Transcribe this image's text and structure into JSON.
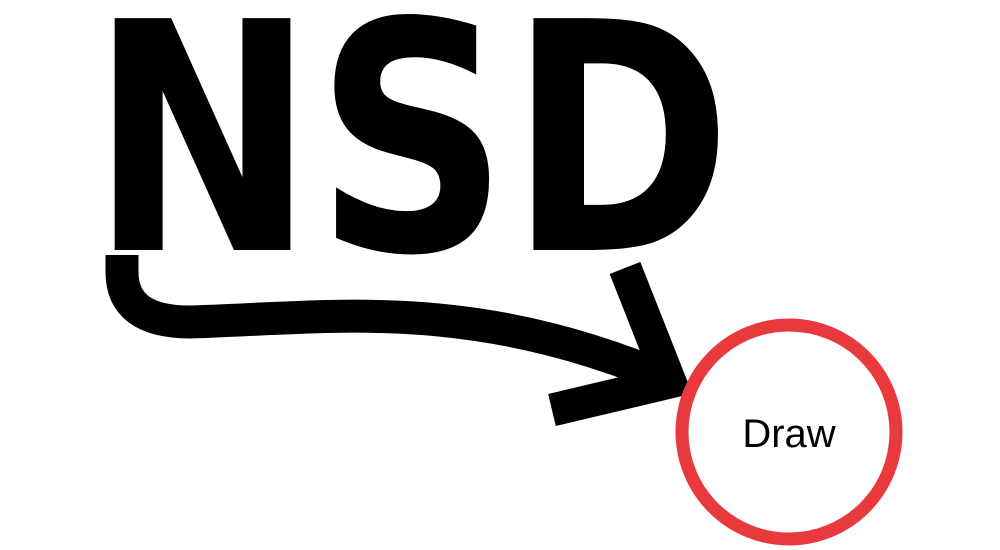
{
  "logo": {
    "wordmark": "NSD",
    "text_color": "#000000"
  },
  "draw_button": {
    "label": "Draw",
    "ring_color": "#e8393c"
  },
  "arrow": {
    "color": "#000000"
  }
}
